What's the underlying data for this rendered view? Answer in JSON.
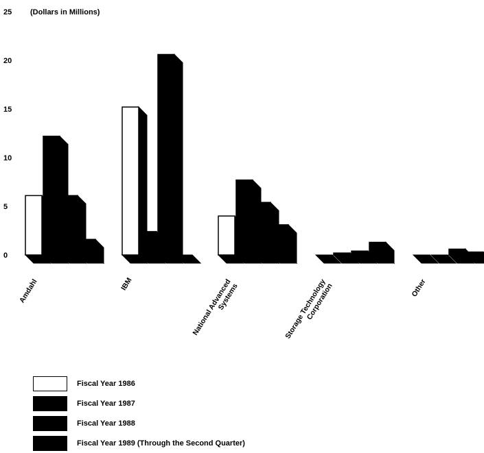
{
  "chart_data": {
    "type": "bar",
    "unit_label": "(Dollars in Millions)",
    "y_ticks": [
      "0",
      "5",
      "10",
      "15",
      "20",
      "25"
    ],
    "ylim": [
      0,
      25
    ],
    "categories": [
      "Amdahl",
      "IBM",
      "National Advanced Systems",
      "Storage Technology Corporation",
      "Other"
    ],
    "category_labels": [
      [
        "Amdahl"
      ],
      [
        "IBM"
      ],
      [
        "National Advanced",
        "Systems"
      ],
      [
        "Storage Technology",
        "Corporation"
      ],
      [
        "Other"
      ]
    ],
    "series": [
      {
        "name": "Fiscal Year 1986",
        "color": "#ffffff",
        "values": [
          6.1,
          15.2,
          4.0,
          0.0,
          0.0
        ]
      },
      {
        "name": "Fiscal Year 1987",
        "color": "#000000",
        "values": [
          12.2,
          2.4,
          7.7,
          0.2,
          0.0
        ]
      },
      {
        "name": "Fiscal Year 1988",
        "color": "#000000",
        "values": [
          6.1,
          20.6,
          5.4,
          0.4,
          0.6
        ]
      },
      {
        "name": "Fiscal Year 1989 (Through the Second Quarter)",
        "color": "#000000",
        "values": [
          1.6,
          0.0,
          3.1,
          1.3,
          0.3
        ]
      }
    ],
    "grid": false,
    "legend_position": "bottom-left"
  }
}
